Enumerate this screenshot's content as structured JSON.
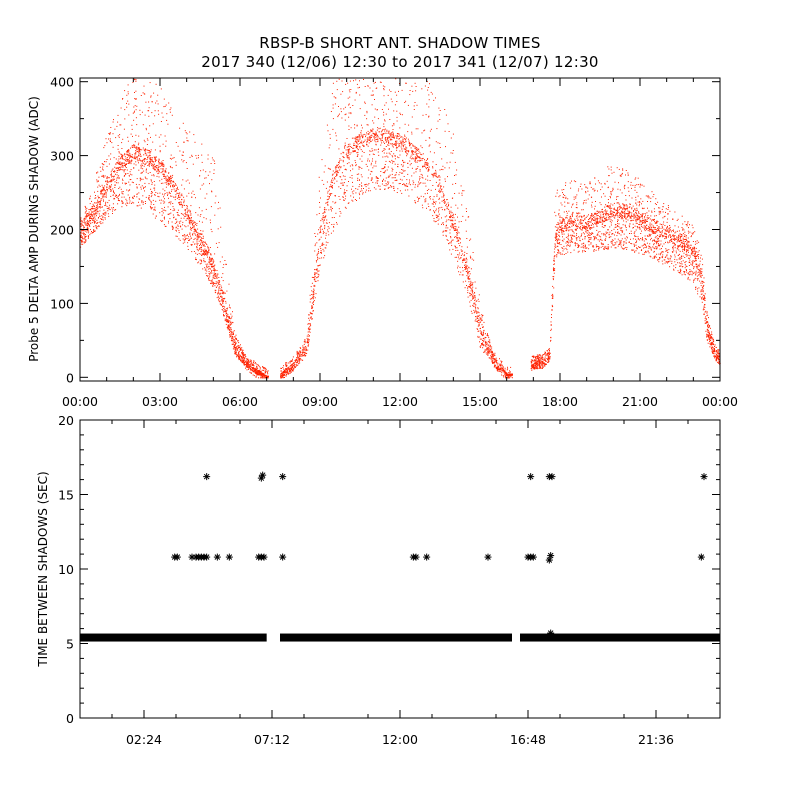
{
  "title": {
    "line1": "RBSP-B SHORT ANT. SHADOW TIMES",
    "line2": "2017 340 (12/06) 12:30 to 2017 341 (12/07) 12:30"
  },
  "colors": {
    "series_top": "#ff2200",
    "series_bottom": "#000000",
    "axes": "#000000"
  },
  "chart_data": [
    {
      "type": "scatter",
      "ylabel": "Probe 5 DELTA AMP DURING SHADOW (ADC)",
      "xlabel": "",
      "x_unit": "hours",
      "xlim": [
        0,
        24
      ],
      "ylim": [
        -5,
        405
      ],
      "grid": false,
      "x_ticks": [
        0,
        3,
        6,
        9,
        12,
        15,
        18,
        21,
        24
      ],
      "x_tick_labels": [
        "00:00",
        "03:00",
        "06:00",
        "09:00",
        "12:00",
        "15:00",
        "18:00",
        "21:00",
        "00:00"
      ],
      "y_ticks": [
        0,
        100,
        200,
        300,
        400
      ],
      "y_tick_labels": [
        "0",
        "100",
        "200",
        "300",
        "400"
      ],
      "marker": "dot",
      "band_description": "approximate envelopes of the dense point cloud",
      "segments": [
        {
          "x_range": [
            0.0,
            7.05
          ],
          "envelopes": [
            {
              "x": [
                0.0,
                0.5,
                1.0,
                1.5,
                2.0,
                2.5,
                3.0,
                3.5,
                4.0,
                4.5,
                5.0,
                5.4,
                5.8,
                6.2,
                6.6,
                7.0
              ],
              "y": [
                220,
                265,
                330,
                385,
                405,
                405,
                400,
                360,
                340,
                320,
                300,
                180,
                60,
                30,
                12,
                2
              ]
            },
            {
              "x": [
                0.0,
                0.5,
                1.0,
                1.5,
                2.0,
                2.5,
                3.0,
                3.5,
                4.0,
                4.5,
                5.0,
                5.4,
                5.8,
                6.2,
                6.6,
                7.0
              ],
              "y": [
                200,
                225,
                260,
                290,
                305,
                300,
                285,
                260,
                225,
                190,
                150,
                100,
                45,
                22,
                10,
                2
              ]
            },
            {
              "x": [
                0.0,
                0.5,
                1.0,
                1.5,
                2.0,
                2.5,
                3.0,
                3.5,
                4.0,
                4.5,
                5.0,
                5.4,
                5.8,
                6.2,
                6.6,
                7.0
              ],
              "y": [
                175,
                195,
                215,
                230,
                235,
                225,
                210,
                195,
                175,
                150,
                120,
                80,
                30,
                15,
                5,
                0
              ]
            }
          ]
        },
        {
          "x_range": [
            7.5,
            16.2
          ],
          "envelopes": [
            {
              "x": [
                7.5,
                8.0,
                8.5,
                9.0,
                9.5,
                10.0,
                11.0,
                12.0,
                13.0,
                13.5,
                14.0,
                14.5,
                15.0,
                15.5,
                16.0
              ],
              "y": [
                5,
                20,
                60,
                300,
                405,
                405,
                405,
                405,
                405,
                390,
                330,
                240,
                100,
                30,
                5
              ]
            },
            {
              "x": [
                7.5,
                8.0,
                8.5,
                9.0,
                9.5,
                10.0,
                11.0,
                12.0,
                13.0,
                13.5,
                14.0,
                14.5,
                15.0,
                15.5,
                16.0
              ],
              "y": [
                5,
                20,
                45,
                200,
                275,
                310,
                330,
                320,
                290,
                260,
                210,
                150,
                70,
                25,
                5
              ]
            },
            {
              "x": [
                7.5,
                8.0,
                8.5,
                9.0,
                9.5,
                10.0,
                11.0,
                12.0,
                13.0,
                13.5,
                14.0,
                14.5,
                15.0,
                15.5,
                16.0
              ],
              "y": [
                0,
                10,
                30,
                150,
                200,
                230,
                255,
                250,
                225,
                200,
                160,
                110,
                40,
                15,
                2
              ]
            }
          ]
        },
        {
          "x_range": [
            16.9,
            24.0
          ],
          "envelopes": [
            {
              "x": [
                16.9,
                17.3,
                17.6,
                17.8,
                18.0,
                18.5,
                19.0,
                19.5,
                20.0,
                20.5,
                21.0,
                21.5,
                22.0,
                22.5,
                23.0,
                23.3,
                23.5,
                23.8,
                24.0
              ],
              "y": [
                30,
                30,
                40,
                250,
                262,
                270,
                262,
                278,
                292,
                285,
                270,
                250,
                235,
                222,
                205,
                170,
                90,
                45,
                30
              ]
            },
            {
              "x": [
                16.9,
                17.3,
                17.6,
                17.8,
                18.0,
                18.5,
                19.0,
                19.5,
                20.0,
                20.5,
                21.0,
                21.5,
                22.0,
                22.5,
                23.0,
                23.3,
                23.5,
                23.8,
                24.0
              ],
              "y": [
                20,
                22,
                30,
                195,
                205,
                215,
                210,
                218,
                228,
                225,
                215,
                205,
                195,
                185,
                170,
                140,
                70,
                35,
                25
              ]
            },
            {
              "x": [
                16.9,
                17.3,
                17.6,
                17.8,
                18.0,
                18.5,
                19.0,
                19.5,
                20.0,
                20.5,
                21.0,
                21.5,
                22.0,
                22.5,
                23.0,
                23.3,
                23.5,
                23.8,
                24.0
              ],
              "y": [
                12,
                12,
                20,
                160,
                165,
                170,
                170,
                172,
                175,
                172,
                168,
                160,
                150,
                140,
                125,
                100,
                50,
                25,
                15
              ]
            }
          ]
        }
      ]
    },
    {
      "type": "scatter",
      "ylabel": "TIME BETWEEN SHADOWS (SEC)",
      "xlabel": "",
      "x_unit": "hours",
      "xlim": [
        0,
        24
      ],
      "ylim": [
        0,
        20
      ],
      "grid": false,
      "x_ticks": [
        2.4,
        7.2,
        12.0,
        16.8,
        21.6
      ],
      "x_tick_labels": [
        "02:24",
        "07:12",
        "12:00",
        "16:48",
        "21:36"
      ],
      "y_ticks": [
        0,
        5,
        10,
        15,
        20
      ],
      "y_tick_labels": [
        "0",
        "5",
        "10",
        "15",
        "20"
      ],
      "marker": "asterisk",
      "baseline": {
        "y": 5.4,
        "x_ranges": [
          [
            0.0,
            7.0
          ],
          [
            7.5,
            16.2
          ],
          [
            16.5,
            24.0
          ]
        ]
      },
      "points": [
        {
          "x": 3.55,
          "y": 10.8
        },
        {
          "x": 3.65,
          "y": 10.8
        },
        {
          "x": 4.2,
          "y": 10.8
        },
        {
          "x": 4.35,
          "y": 10.8
        },
        {
          "x": 4.45,
          "y": 10.8
        },
        {
          "x": 4.55,
          "y": 10.8
        },
        {
          "x": 4.65,
          "y": 10.8
        },
        {
          "x": 4.75,
          "y": 10.8
        },
        {
          "x": 5.15,
          "y": 10.8
        },
        {
          "x": 5.6,
          "y": 10.8
        },
        {
          "x": 6.7,
          "y": 10.8
        },
        {
          "x": 6.8,
          "y": 10.8
        },
        {
          "x": 6.9,
          "y": 10.8
        },
        {
          "x": 7.6,
          "y": 10.8
        },
        {
          "x": 12.5,
          "y": 10.8
        },
        {
          "x": 12.6,
          "y": 10.8
        },
        {
          "x": 13.0,
          "y": 10.8
        },
        {
          "x": 15.3,
          "y": 10.8
        },
        {
          "x": 16.8,
          "y": 10.8
        },
        {
          "x": 16.9,
          "y": 10.8
        },
        {
          "x": 17.0,
          "y": 10.8
        },
        {
          "x": 17.6,
          "y": 10.6
        },
        {
          "x": 17.65,
          "y": 10.9
        },
        {
          "x": 23.3,
          "y": 10.8
        },
        {
          "x": 4.75,
          "y": 16.2
        },
        {
          "x": 6.8,
          "y": 16.1
        },
        {
          "x": 6.85,
          "y": 16.3
        },
        {
          "x": 7.6,
          "y": 16.2
        },
        {
          "x": 16.9,
          "y": 16.2
        },
        {
          "x": 17.6,
          "y": 16.2
        },
        {
          "x": 17.7,
          "y": 16.2
        },
        {
          "x": 23.4,
          "y": 16.2
        },
        {
          "x": 17.65,
          "y": 5.7
        }
      ]
    }
  ]
}
